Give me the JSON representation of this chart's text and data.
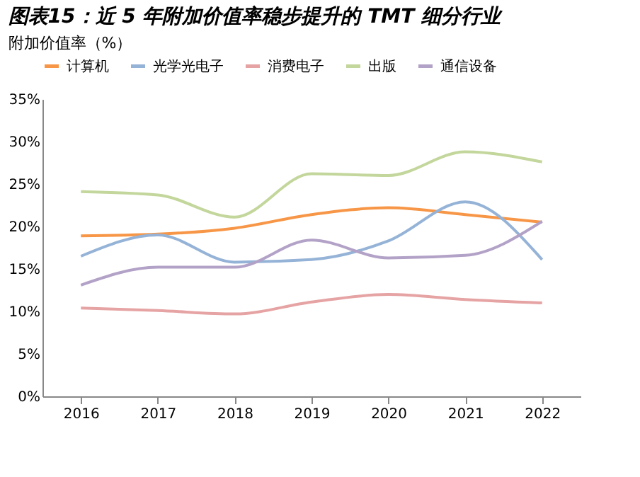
{
  "chart_data": {
    "type": "line",
    "title": "图表15：近 5 年附加价值率稳步提升的 TMT 细分行业",
    "subtitle": "附加价值率（%）",
    "categories": [
      "2016",
      "2017",
      "2018",
      "2019",
      "2020",
      "2021",
      "2022"
    ],
    "series": [
      {
        "name": "计算机",
        "color": "#f79646",
        "values": [
          18.9,
          19.1,
          19.8,
          21.4,
          22.2,
          21.4,
          20.5
        ]
      },
      {
        "name": "光学光电子",
        "color": "#95b3d7",
        "values": [
          16.5,
          19.0,
          15.8,
          16.1,
          18.3,
          22.9,
          16.1
        ]
      },
      {
        "name": "消费电子",
        "color": "#e6a3a3",
        "values": [
          10.4,
          10.1,
          9.7,
          11.1,
          12.0,
          11.4,
          11.0
        ]
      },
      {
        "name": "出版",
        "color": "#c3d69b",
        "values": [
          24.1,
          23.7,
          21.1,
          26.2,
          26.0,
          28.8,
          27.6
        ]
      },
      {
        "name": "通信设备",
        "color": "#b3a2c7",
        "values": [
          13.1,
          15.2,
          15.2,
          18.4,
          16.3,
          16.6,
          20.6
        ]
      }
    ],
    "ylim": [
      0,
      35
    ],
    "yticks": [
      {
        "value": 0,
        "label": "0%"
      },
      {
        "value": 5,
        "label": "5%"
      },
      {
        "value": 10,
        "label": "10%"
      },
      {
        "value": 15,
        "label": "15%"
      },
      {
        "value": 20,
        "label": "20%"
      },
      {
        "value": 25,
        "label": "25%"
      },
      {
        "value": 30,
        "label": "30%"
      },
      {
        "value": 35,
        "label": "35%"
      }
    ],
    "legend": "top",
    "grid": false,
    "marker": "none",
    "line_style": "solid"
  }
}
